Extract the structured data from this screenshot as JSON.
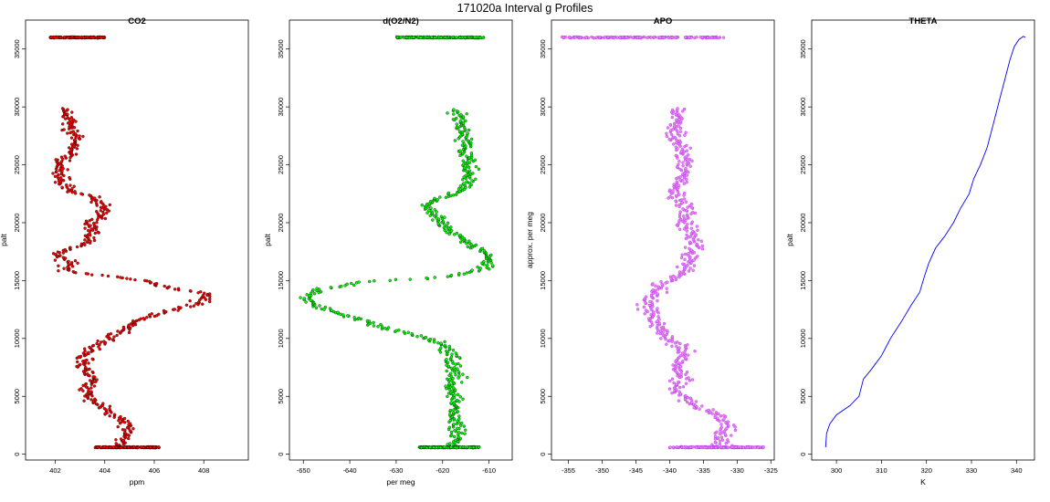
{
  "title": "171020a   Interval g Profiles",
  "chart_data": [
    {
      "type": "scatter",
      "title": "CO2",
      "xlabel": "ppm",
      "ylabel": "palt",
      "xlim": [
        400.8,
        409.8
      ],
      "ylim": [
        -500,
        37500
      ],
      "xticks": [
        402,
        404,
        406,
        408
      ],
      "yticks": [
        0,
        5000,
        10000,
        15000,
        20000,
        25000,
        30000,
        35000
      ],
      "point_color": "#ff0000",
      "edge_color": "#000000",
      "profile": [
        [
          404.5,
          600
        ],
        [
          404.8,
          1500
        ],
        [
          405.0,
          2500
        ],
        [
          404.2,
          3500
        ],
        [
          403.6,
          4500
        ],
        [
          403.2,
          5500
        ],
        [
          403.6,
          6500
        ],
        [
          403.0,
          7500
        ],
        [
          403.2,
          8500
        ],
        [
          403.6,
          9200
        ],
        [
          404.2,
          10000
        ],
        [
          404.8,
          10800
        ],
        [
          405.3,
          11600
        ],
        [
          406.6,
          12400
        ],
        [
          407.8,
          13000
        ],
        [
          408.2,
          13800
        ],
        [
          406.5,
          14500
        ],
        [
          405.0,
          15200
        ],
        [
          402.3,
          15800
        ],
        [
          402.6,
          16500
        ],
        [
          402.1,
          17300
        ],
        [
          403.2,
          18200
        ],
        [
          403.5,
          19000
        ],
        [
          403.4,
          19800
        ],
        [
          403.8,
          20600
        ],
        [
          404.0,
          21400
        ],
        [
          403.5,
          22200
        ],
        [
          402.4,
          23000
        ],
        [
          402.2,
          24000
        ],
        [
          402.1,
          25000
        ],
        [
          402.6,
          26000
        ],
        [
          402.8,
          27000
        ],
        [
          402.6,
          28000
        ],
        [
          402.5,
          29000
        ],
        [
          402.3,
          29900
        ]
      ],
      "spread": 0.6,
      "top_band": {
        "alt": 36000,
        "x_range": [
          401.8,
          404.0
        ]
      },
      "bottom_band": {
        "alt": 600,
        "x_range": [
          403.6,
          406.2
        ]
      }
    },
    {
      "type": "scatter",
      "title": "d(O2/N2)",
      "xlabel": "per meg",
      "ylabel": "palt",
      "xlim": [
        -653,
        -605
      ],
      "ylim": [
        -500,
        37500
      ],
      "xticks": [
        -650,
        -640,
        -630,
        -620,
        -610
      ],
      "yticks": [
        0,
        5000,
        10000,
        15000,
        20000,
        25000,
        30000,
        35000
      ],
      "point_color": "#00ff00",
      "edge_color": "#000000",
      "profile": [
        [
          -618,
          600
        ],
        [
          -617,
          1500
        ],
        [
          -617,
          2500
        ],
        [
          -618,
          3500
        ],
        [
          -617,
          4500
        ],
        [
          -618,
          5500
        ],
        [
          -617,
          6500
        ],
        [
          -618,
          7500
        ],
        [
          -618,
          8500
        ],
        [
          -619,
          9300
        ],
        [
          -625,
          10200
        ],
        [
          -633,
          11000
        ],
        [
          -639,
          11800
        ],
        [
          -645,
          12500
        ],
        [
          -650,
          13400
        ],
        [
          -647,
          14200
        ],
        [
          -636,
          14900
        ],
        [
          -620,
          15300
        ],
        [
          -611,
          16000
        ],
        [
          -610,
          16800
        ],
        [
          -612,
          17600
        ],
        [
          -615,
          18400
        ],
        [
          -618,
          19200
        ],
        [
          -620,
          20000
        ],
        [
          -622,
          20800
        ],
        [
          -624,
          21600
        ],
        [
          -618,
          22400
        ],
        [
          -615,
          23200
        ],
        [
          -614,
          24000
        ],
        [
          -614,
          24800
        ],
        [
          -615,
          25800
        ],
        [
          -615,
          26800
        ],
        [
          -616,
          27800
        ],
        [
          -616,
          28800
        ],
        [
          -617,
          29800
        ]
      ],
      "spread": 3.0,
      "top_band": {
        "alt": 36000,
        "x_range": [
          -630,
          -611
        ]
      },
      "bottom_band": {
        "alt": 600,
        "x_range": [
          -625,
          -612
        ]
      }
    },
    {
      "type": "scatter",
      "title": "APO",
      "xlabel": "",
      "ylabel": "approx. per meg",
      "xlim": [
        -357.5,
        -324.5
      ],
      "ylim": [
        -500,
        37500
      ],
      "xticks": [
        -355,
        -350,
        -345,
        -340,
        -335,
        -330,
        -325
      ],
      "yticks": [
        0,
        5000,
        10000,
        15000,
        20000,
        25000,
        30000,
        35000
      ],
      "point_color": "#ee82ee",
      "edge_color": "#a020f0",
      "profile": [
        [
          -333,
          600
        ],
        [
          -332,
          1600
        ],
        [
          -331,
          2700
        ],
        [
          -334,
          3600
        ],
        [
          -337,
          4500
        ],
        [
          -339,
          5500
        ],
        [
          -338,
          6500
        ],
        [
          -339,
          7500
        ],
        [
          -338,
          8500
        ],
        [
          -339,
          9400
        ],
        [
          -341,
          10300
        ],
        [
          -342,
          11200
        ],
        [
          -343,
          12100
        ],
        [
          -343,
          13000
        ],
        [
          -342,
          13900
        ],
        [
          -341,
          14800
        ],
        [
          -338,
          15700
        ],
        [
          -337,
          16600
        ],
        [
          -337,
          17500
        ],
        [
          -336,
          18400
        ],
        [
          -337,
          19300
        ],
        [
          -338,
          20200
        ],
        [
          -337,
          21100
        ],
        [
          -339,
          22000
        ],
        [
          -339,
          23000
        ],
        [
          -338,
          24000
        ],
        [
          -338,
          25000
        ],
        [
          -338,
          26000
        ],
        [
          -339,
          27000
        ],
        [
          -339,
          28000
        ],
        [
          -339,
          29000
        ],
        [
          -339,
          29900
        ]
      ],
      "spread": 2.6,
      "top_band": {
        "alt": 36000,
        "x_range": [
          -356,
          -331
        ]
      },
      "bottom_band": {
        "alt": 600,
        "x_range": [
          -340,
          -326
        ]
      }
    },
    {
      "type": "line",
      "title": "THETA",
      "xlabel": "K",
      "ylabel": "palt",
      "xlim": [
        294.5,
        344
      ],
      "ylim": [
        -500,
        37500
      ],
      "xticks": [
        300,
        310,
        320,
        330,
        340
      ],
      "yticks": [
        0,
        5000,
        10000,
        15000,
        20000,
        25000,
        30000,
        35000
      ],
      "line_color": "#0000ff",
      "points": [
        [
          297.6,
          600
        ],
        [
          297.8,
          1800
        ],
        [
          298.5,
          2600
        ],
        [
          300.0,
          3400
        ],
        [
          303.0,
          4200
        ],
        [
          305.0,
          5000
        ],
        [
          306.0,
          6500
        ],
        [
          307.5,
          7200
        ],
        [
          310.0,
          8500
        ],
        [
          312.0,
          10000
        ],
        [
          314.5,
          11500
        ],
        [
          316.5,
          12800
        ],
        [
          318.5,
          14000
        ],
        [
          319.5,
          15300
        ],
        [
          320.5,
          16500
        ],
        [
          322.0,
          17800
        ],
        [
          324.0,
          18800
        ],
        [
          326.0,
          20000
        ],
        [
          327.5,
          21200
        ],
        [
          329.5,
          22500
        ],
        [
          330.5,
          23800
        ],
        [
          332.0,
          25000
        ],
        [
          333.5,
          26500
        ],
        [
          334.5,
          28000
        ],
        [
          335.5,
          29500
        ],
        [
          336.5,
          31000
        ],
        [
          337.5,
          32500
        ],
        [
          338.5,
          34000
        ],
        [
          339.5,
          35200
        ],
        [
          340.5,
          35800
        ],
        [
          341.5,
          36100
        ],
        [
          342.0,
          36000
        ]
      ]
    }
  ]
}
